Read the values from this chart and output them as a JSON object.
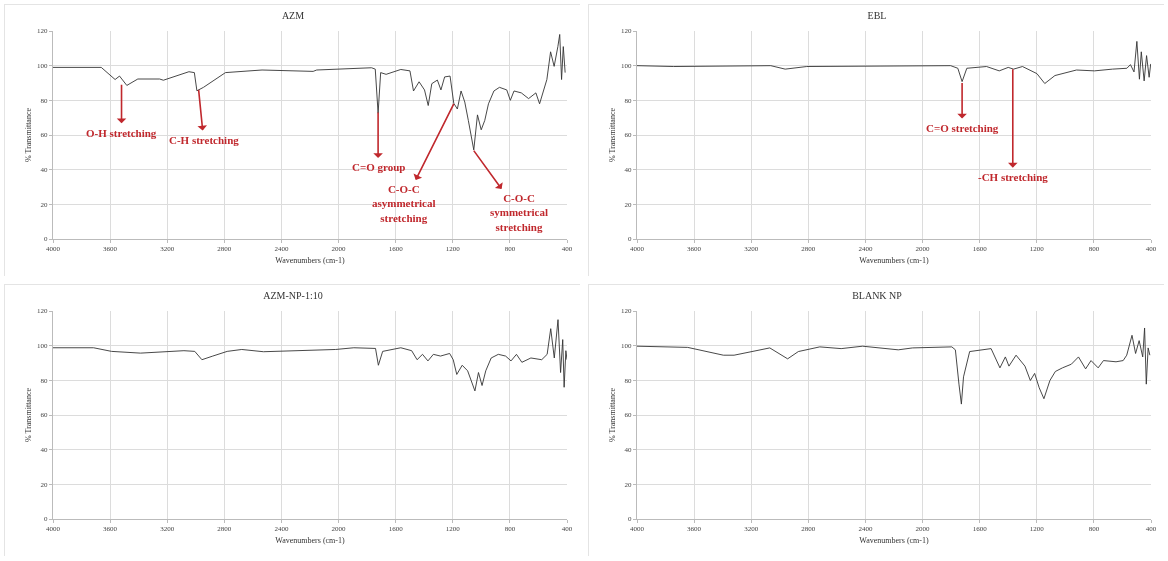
{
  "chart_data": [
    {
      "type": "line",
      "title": "AZM",
      "xlabel": "Wavenumbers (cm-1)",
      "ylabel": "% Transmittance",
      "xlim": [
        4000,
        400
      ],
      "xticks": [
        4000,
        3600,
        3200,
        2800,
        2400,
        2000,
        1600,
        1200,
        800,
        400
      ],
      "ylim": [
        0,
        120
      ],
      "yticks": [
        0,
        20,
        40,
        60,
        80,
        100,
        120
      ],
      "grid": true,
      "marker": "none",
      "line_style": "solid",
      "series": [
        {
          "color": "#333333",
          "x": [
            4000,
            3662,
            3565,
            3534,
            3483,
            3406,
            3253,
            3227,
            3048,
            3010,
            2992,
            2946,
            2792,
            2536,
            2178,
            2153,
            1769,
            1743,
            1723,
            1705,
            1667,
            1564,
            1500,
            1475,
            1436,
            1398,
            1372,
            1347,
            1308,
            1283,
            1257,
            1219,
            1193,
            1168,
            1142,
            1116,
            1091,
            1053,
            1027,
            1001,
            976,
            950,
            912,
            873,
            822,
            797,
            771,
            720,
            669,
            618,
            592,
            541,
            515,
            490,
            464,
            451,
            438,
            426,
            413
          ],
          "values": [
            99,
            99,
            92,
            94,
            88.6,
            92.3,
            92.3,
            91.6,
            96.5,
            96,
            85.5,
            87.5,
            96,
            97.5,
            96.7,
            97.5,
            98.8,
            98,
            72.6,
            96,
            95,
            97.8,
            97,
            85.4,
            90.7,
            86,
            77,
            89.6,
            91.7,
            86,
            93.5,
            94,
            78.3,
            75,
            85.4,
            79,
            68.4,
            51.4,
            71.6,
            63,
            68.4,
            78,
            85.4,
            87.5,
            86,
            80,
            85.4,
            84.3,
            81,
            84.3,
            78,
            92,
            108,
            99.6,
            111,
            118,
            92,
            111,
            96
          ]
        }
      ],
      "annotations": [
        {
          "text": "O-H stretching",
          "x": 3520,
          "y": 89
        },
        {
          "text": "C-H stretching",
          "x": 2980,
          "y": 86
        },
        {
          "text": "C=O group",
          "x": 1723,
          "y": 73
        },
        {
          "text": "C-O-C asymmetrical stretching",
          "x": 1193,
          "y": 78
        },
        {
          "text": "C-O-C symmetrical stretching",
          "x": 1053,
          "y": 51
        }
      ]
    },
    {
      "type": "line",
      "title": "EBL",
      "xlabel": "Wavenumbers (cm-1)",
      "ylabel": "% Transmittance",
      "xlim": [
        4000,
        400
      ],
      "xticks": [
        4000,
        3600,
        3200,
        2800,
        2400,
        2000,
        1600,
        1200,
        800,
        400
      ],
      "ylim": [
        0,
        120
      ],
      "yticks": [
        0,
        20,
        40,
        60,
        80,
        100,
        120
      ],
      "grid": true,
      "marker": "none",
      "line_style": "solid",
      "series": [
        {
          "color": "#333333",
          "x": [
            4000,
            3743,
            3063,
            2962,
            2811,
            1803,
            1753,
            1723,
            1690,
            1552,
            1463,
            1400,
            1363,
            1300,
            1199,
            1144,
            1073,
            922,
            796,
            670,
            569,
            544,
            519,
            499,
            481,
            468,
            448,
            431,
            413,
            402
          ],
          "values": [
            100,
            99.5,
            100,
            98,
            99.5,
            100,
            98.5,
            90.8,
            98.5,
            99.5,
            97,
            99,
            98,
            99.5,
            95.4,
            89.7,
            94.3,
            97.5,
            97,
            98,
            98.5,
            100.6,
            96.4,
            114,
            92.2,
            108,
            91.2,
            105.8,
            93.3,
            101
          ]
        }
      ],
      "annotations": [
        {
          "text": "C=O stretching",
          "x": 1723,
          "y": 90
        },
        {
          "text": "-CH stretching",
          "x": 1368,
          "y": 98
        }
      ]
    },
    {
      "type": "line",
      "title": "AZM-NP-1:10",
      "xlabel": "Wavenumbers (cm-1)",
      "ylabel": "% Transmittance",
      "xlim": [
        4000,
        400
      ],
      "xticks": [
        4000,
        3600,
        3200,
        2800,
        2400,
        2000,
        1600,
        1200,
        800,
        400
      ],
      "ylim": [
        0,
        120
      ],
      "yticks": [
        0,
        20,
        40,
        60,
        80,
        100,
        120
      ],
      "grid": true,
      "marker": "none",
      "line_style": "solid",
      "series": [
        {
          "color": "#333333",
          "x": [
            4000,
            3716,
            3590,
            3387,
            3083,
            3007,
            2957,
            2881,
            2780,
            2678,
            2526,
            2020,
            1893,
            1741,
            1721,
            1691,
            1564,
            1488,
            1450,
            1412,
            1374,
            1336,
            1286,
            1222,
            1197,
            1172,
            1134,
            1096,
            1045,
            1020,
            995,
            969,
            931,
            881,
            830,
            792,
            754,
            716,
            653,
            577,
            539,
            514,
            489,
            463,
            445,
            430,
            420,
            408,
            400
          ],
          "values": [
            98.8,
            98.8,
            96.7,
            95.7,
            97.1,
            96.7,
            91.9,
            94,
            96.7,
            97.8,
            96.5,
            97.8,
            98.8,
            98.4,
            88.7,
            96.7,
            98.8,
            97.1,
            91.9,
            95,
            91.2,
            95,
            94,
            95.5,
            91.9,
            83.4,
            88.7,
            85.5,
            73.9,
            84.5,
            77,
            85.5,
            92.9,
            95,
            94,
            91.2,
            95,
            90.4,
            92.9,
            91.9,
            95,
            109.8,
            92.9,
            115,
            84.5,
            103.5,
            76,
            97.1,
            91.9
          ]
        }
      ]
    },
    {
      "type": "line",
      "title": "BLANK NP",
      "xlabel": "Wavenumbers (cm-1)",
      "ylabel": "% Transmittance",
      "xlim": [
        4000,
        400
      ],
      "xticks": [
        4000,
        3600,
        3200,
        2800,
        2400,
        2000,
        1600,
        1200,
        800,
        400
      ],
      "ylim": [
        0,
        120
      ],
      "yticks": [
        0,
        20,
        40,
        60,
        80,
        100,
        120
      ],
      "grid": true,
      "marker": "none",
      "line_style": "solid",
      "series": [
        {
          "color": "#333333",
          "x": [
            4000,
            3645,
            3395,
            3320,
            3070,
            2945,
            2870,
            2720,
            2570,
            2420,
            2170,
            2070,
            1795,
            1770,
            1745,
            1728,
            1713,
            1670,
            1520,
            1458,
            1420,
            1395,
            1345,
            1283,
            1245,
            1215,
            1183,
            1150,
            1108,
            1070,
            1020,
            958,
            908,
            858,
            820,
            770,
            733,
            645,
            595,
            570,
            533,
            508,
            483,
            458,
            445,
            433,
            420,
            408
          ],
          "values": [
            99.7,
            99,
            94.5,
            94.5,
            98.7,
            92.4,
            96.6,
            99.3,
            98.3,
            99.7,
            97.6,
            98.7,
            99.3,
            97.6,
            77.8,
            66.3,
            82,
            96.6,
            98.3,
            87.2,
            93.5,
            88.2,
            94.5,
            88.2,
            79.9,
            84,
            75.7,
            69.4,
            79.9,
            85.1,
            87.2,
            89.3,
            93.5,
            86.6,
            91.4,
            87.2,
            91.4,
            90.7,
            91.4,
            94.5,
            106,
            95.5,
            102.9,
            93.5,
            110.2,
            77.8,
            98.7,
            94.5
          ]
        }
      ]
    }
  ]
}
